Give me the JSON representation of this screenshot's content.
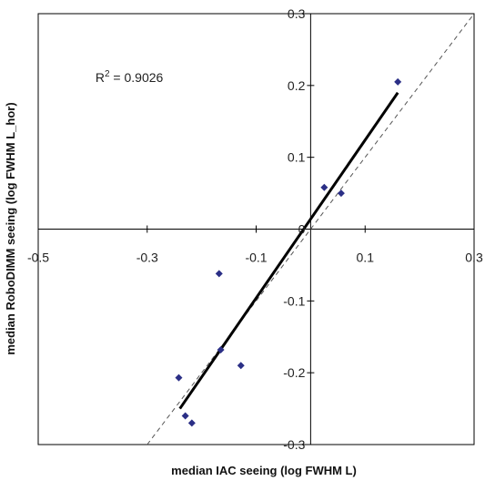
{
  "chart_data": {
    "type": "scatter",
    "xlabel": "median IAC seeing (log FWHM L)",
    "ylabel": "median RoboDIMM seeing (log FWHM L_hor)",
    "xlim": [
      -0.5,
      0.3
    ],
    "ylim": [
      -0.3,
      0.3
    ],
    "x_ticks": [
      {
        "value": -0.5,
        "label": "-0.5"
      },
      {
        "value": -0.3,
        "label": "-0.3"
      },
      {
        "value": -0.1,
        "label": "-0.1"
      },
      {
        "value": 0.1,
        "label": "0.1"
      },
      {
        "value": 0.3,
        "label": "0.3"
      }
    ],
    "y_ticks": [
      {
        "value": 0.3,
        "label": "0.3"
      },
      {
        "value": 0.2,
        "label": "0.2"
      },
      {
        "value": 0.1,
        "label": "0.1"
      },
      {
        "value": 0,
        "label": "0"
      },
      {
        "value": -0.1,
        "label": "-0.1"
      },
      {
        "value": -0.2,
        "label": "-0.2"
      },
      {
        "value": -0.3,
        "label": "-0.3"
      }
    ],
    "points": [
      {
        "x": 0.16,
        "y": 0.205
      },
      {
        "x": 0.025,
        "y": 0.058
      },
      {
        "x": 0.056,
        "y": 0.05
      },
      {
        "x": -0.168,
        "y": -0.062
      },
      {
        "x": -0.165,
        "y": -0.168
      },
      {
        "x": -0.128,
        "y": -0.19
      },
      {
        "x": -0.242,
        "y": -0.207
      },
      {
        "x": -0.23,
        "y": -0.26
      },
      {
        "x": -0.218,
        "y": -0.27
      }
    ],
    "fit_line": {
      "x1": -0.24,
      "y1": -0.25,
      "x2": 0.16,
      "y2": 0.19
    },
    "identity_line": {
      "x1": -0.3,
      "y1": -0.3,
      "x2": 0.3,
      "y2": 0.3
    },
    "annotation": {
      "text": "R",
      "sup": "2",
      "rest": " = 0.9026",
      "x": -0.395,
      "y": 0.205
    },
    "grid": false,
    "marker_color": "#2b2f86",
    "fit_color": "#000000",
    "identity_color": "#555555"
  }
}
